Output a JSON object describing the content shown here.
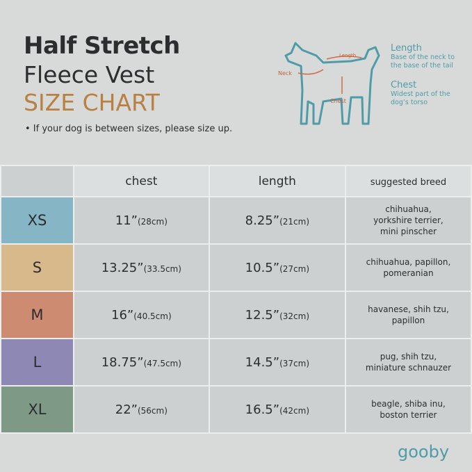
{
  "header": {
    "title_line1": "Half Stretch",
    "title_line2": "Fleece Vest",
    "title_line3": "SIZE CHART",
    "note": "• If your dog is between sizes, please size up."
  },
  "diagram": {
    "neck": "Neck",
    "length": "Length",
    "chest": "Chest",
    "legend": [
      {
        "title": "Length",
        "lines": [
          "Base of the neck to",
          "the base of the tail"
        ]
      },
      {
        "title": "Chest",
        "lines": [
          "Widest part of the",
          "dog’s torso"
        ]
      }
    ]
  },
  "table": {
    "header": [
      "chest",
      "length",
      "suggested breed"
    ],
    "rows": [
      {
        "size": "XS",
        "color": "#86b6c5",
        "chest": "11”",
        "chest_cm": "(28cm)",
        "length": "8.25”",
        "length_cm": "(21cm)",
        "breed": [
          "chihuahua,",
          "yorkshire terrier,",
          "mini pinscher"
        ]
      },
      {
        "size": "S",
        "color": "#d8b98b",
        "chest": "13.25”",
        "chest_cm": "(33.5cm)",
        "length": "10.5”",
        "length_cm": "(27cm)",
        "breed": [
          "chihuahua, papillon,",
          "pomeranian"
        ]
      },
      {
        "size": "M",
        "color": "#cd8b72",
        "chest": "16”",
        "chest_cm": "(40.5cm)",
        "length": "12.5”",
        "length_cm": "(32cm)",
        "breed": [
          "havanese, shih tzu,",
          "papillon"
        ]
      },
      {
        "size": "L",
        "color": "#8d88b4",
        "chest": "18.75”",
        "chest_cm": "(47.5cm)",
        "length": "14.5”",
        "length_cm": "(37cm)",
        "breed": [
          "pug, shih tzu,",
          "miniature schnauzer"
        ]
      },
      {
        "size": "XL",
        "color": "#7e9a86",
        "chest": "22”",
        "chest_cm": "(56cm)",
        "length": "16.5”",
        "length_cm": "(42cm)",
        "breed": [
          "beagle, shiba inu,",
          "boston terrier"
        ]
      }
    ]
  },
  "brand": "gooby"
}
